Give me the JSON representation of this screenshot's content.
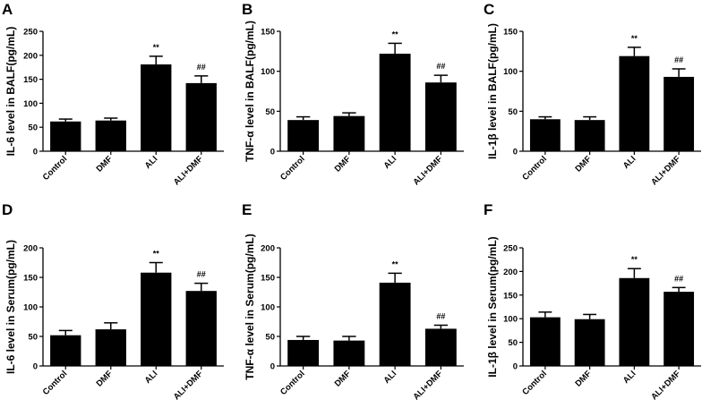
{
  "chart_data": [
    {
      "panel": "A",
      "type": "bar",
      "ylabel": "IL-6 level in BALF(pg/mL)",
      "categories": [
        "Control",
        "DMF",
        "ALI",
        "ALI+DMF"
      ],
      "values": [
        62,
        64,
        181,
        142
      ],
      "errors": [
        5,
        5,
        17,
        15
      ],
      "annotations": [
        "",
        "",
        "**",
        "##"
      ],
      "ylim": [
        0,
        250
      ],
      "yticks": [
        0,
        50,
        100,
        150,
        200,
        250
      ]
    },
    {
      "panel": "B",
      "type": "bar",
      "ylabel": "TNF-α level in BALF(pg/mL)",
      "categories": [
        "Control",
        "DMF",
        "ALI",
        "ALI+DMF"
      ],
      "values": [
        39,
        44,
        122,
        86
      ],
      "errors": [
        4,
        4,
        13,
        9
      ],
      "annotations": [
        "",
        "",
        "**",
        "##"
      ],
      "ylim": [
        0,
        150
      ],
      "yticks": [
        0,
        50,
        100,
        150
      ]
    },
    {
      "panel": "C",
      "type": "bar",
      "ylabel": "IL-1β level in BALF(pg/mL)",
      "categories": [
        "Control",
        "DMF",
        "ALI",
        "ALI+DMF"
      ],
      "values": [
        40,
        39,
        119,
        93
      ],
      "errors": [
        3,
        4,
        11,
        10
      ],
      "annotations": [
        "",
        "",
        "**",
        "##"
      ],
      "ylim": [
        0,
        150
      ],
      "yticks": [
        0,
        50,
        100,
        150
      ]
    },
    {
      "panel": "D",
      "type": "bar",
      "ylabel": "IL-6 level in Serum(pg/mL)",
      "categories": [
        "Control",
        "DMF",
        "ALI",
        "ALI+DMF"
      ],
      "values": [
        52,
        62,
        158,
        127
      ],
      "errors": [
        8,
        11,
        17,
        13
      ],
      "annotations": [
        "",
        "",
        "**",
        "##"
      ],
      "ylim": [
        0,
        200
      ],
      "yticks": [
        0,
        50,
        100,
        150,
        200
      ]
    },
    {
      "panel": "E",
      "type": "bar",
      "ylabel": "TNF-α level in Serum(pg/mL)",
      "categories": [
        "Control",
        "DMF",
        "ALI",
        "ALI+DMF"
      ],
      "values": [
        44,
        43,
        141,
        63
      ],
      "errors": [
        6,
        7,
        16,
        6
      ],
      "annotations": [
        "",
        "",
        "**",
        "##"
      ],
      "ylim": [
        0,
        200
      ],
      "yticks": [
        0,
        50,
        100,
        150,
        200
      ]
    },
    {
      "panel": "F",
      "type": "bar",
      "ylabel": "IL-1β level in Serum(pg/mL)",
      "categories": [
        "Control",
        "DMF",
        "ALI",
        "ALI+DMF"
      ],
      "values": [
        103,
        99,
        186,
        157
      ],
      "errors": [
        11,
        10,
        20,
        9
      ],
      "annotations": [
        "",
        "",
        "**",
        "##"
      ],
      "ylim": [
        0,
        250
      ],
      "yticks": [
        0,
        50,
        100,
        150,
        200,
        250
      ]
    }
  ]
}
